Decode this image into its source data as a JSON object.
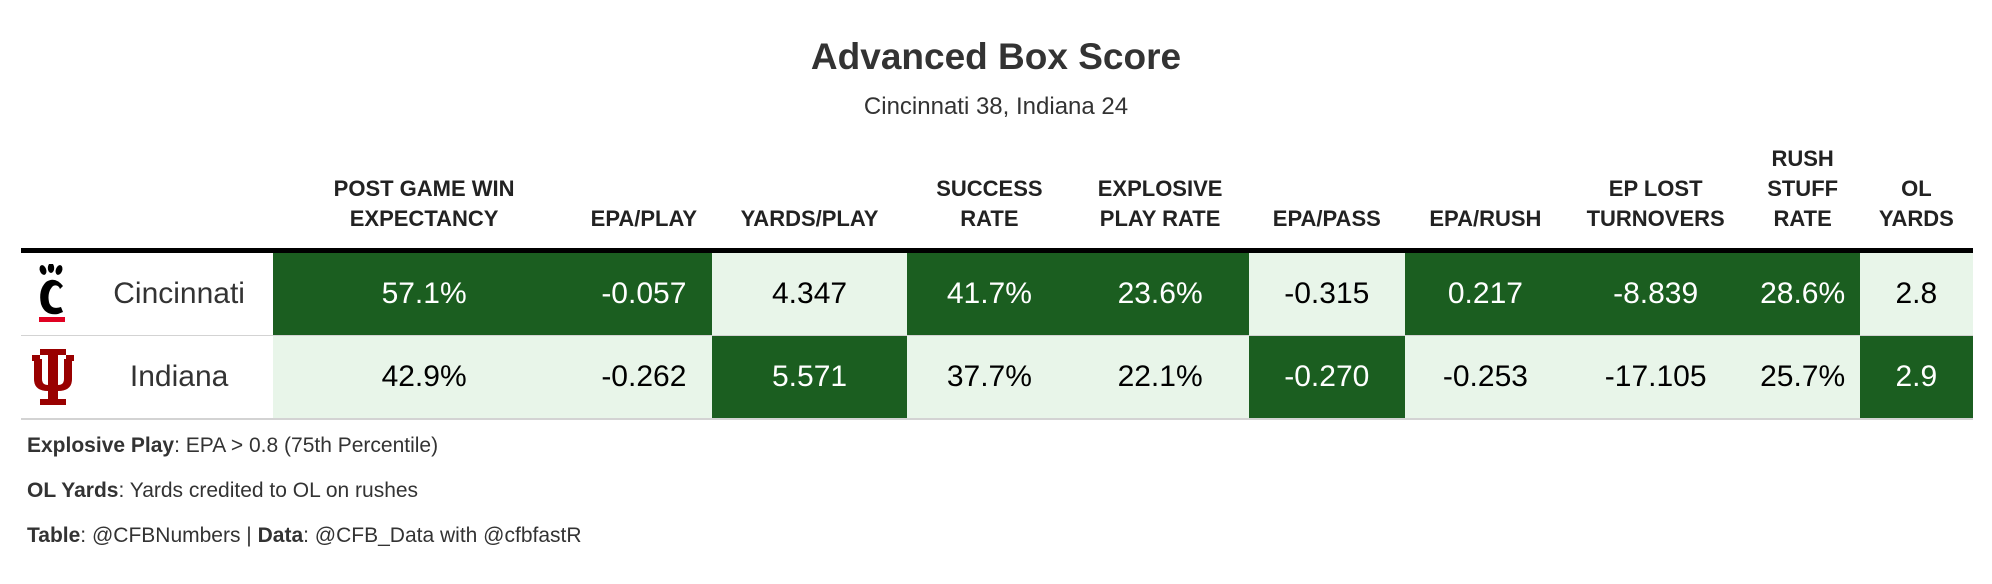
{
  "title": "Advanced Box Score",
  "subtitle": "Cincinnati 38, Indiana 24",
  "columns": [
    "Post Game Win Expectancy",
    "EPA/Play",
    "Yards/Play",
    "Success Rate",
    "Explosive Play Rate",
    "EPA/Pass",
    "EPA/Rush",
    "EP Lost Turnovers",
    "Rush Stuff Rate",
    "OL Yards"
  ],
  "rows": [
    {
      "team": "Cincinnati",
      "logo": "cincinnati-c-paw-logo",
      "cells": [
        {
          "value": "57.1%",
          "best": true
        },
        {
          "value": "-0.057",
          "best": true
        },
        {
          "value": "4.347",
          "best": false
        },
        {
          "value": "41.7%",
          "best": true
        },
        {
          "value": "23.6%",
          "best": true
        },
        {
          "value": "-0.315",
          "best": false
        },
        {
          "value": "0.217",
          "best": true
        },
        {
          "value": "-8.839",
          "best": true
        },
        {
          "value": "28.6%",
          "best": true
        },
        {
          "value": "2.8",
          "best": false
        }
      ]
    },
    {
      "team": "Indiana",
      "logo": "indiana-iu-trident-logo",
      "cells": [
        {
          "value": "42.9%",
          "best": false
        },
        {
          "value": "-0.262",
          "best": false
        },
        {
          "value": "5.571",
          "best": true
        },
        {
          "value": "37.7%",
          "best": false
        },
        {
          "value": "22.1%",
          "best": false
        },
        {
          "value": "-0.270",
          "best": true
        },
        {
          "value": "-0.253",
          "best": false
        },
        {
          "value": "-17.105",
          "best": false
        },
        {
          "value": "25.7%",
          "best": false
        },
        {
          "value": "2.9",
          "best": true
        }
      ]
    }
  ],
  "footnotes": {
    "explosive_label": "Explosive Play",
    "explosive_text": ": EPA > 0.8 (75th Percentile)",
    "ol_label": "OL Yards",
    "ol_text": ": Yards credited to OL on rushes",
    "table_label": "Table",
    "table_text": ": @CFBNumbers | ",
    "data_label": "Data",
    "data_text": ": @CFB_Data with @cfbfastR"
  },
  "colors": {
    "best": "#1b5e20",
    "other": "#e8f5e9",
    "cincinnati_red": "#e00122",
    "indiana_crimson": "#990000"
  },
  "chart_data": {
    "type": "table",
    "title": "Advanced Box Score",
    "subtitle": "Cincinnati 38, Indiana 24",
    "columns": [
      "Post Game Win Expectancy",
      "EPA/Play",
      "Yards/Play",
      "Success Rate",
      "Explosive Play Rate",
      "EPA/Pass",
      "EPA/Rush",
      "EP Lost Turnovers",
      "Rush Stuff Rate",
      "OL Yards"
    ],
    "rows": [
      {
        "team": "Cincinnati",
        "values": [
          57.1,
          -0.057,
          4.347,
          41.7,
          23.6,
          -0.315,
          0.217,
          -8.839,
          28.6,
          2.8
        ]
      },
      {
        "team": "Indiana",
        "values": [
          42.9,
          -0.262,
          5.571,
          37.7,
          22.1,
          -0.27,
          -0.253,
          -17.105,
          25.7,
          2.9
        ]
      }
    ]
  }
}
